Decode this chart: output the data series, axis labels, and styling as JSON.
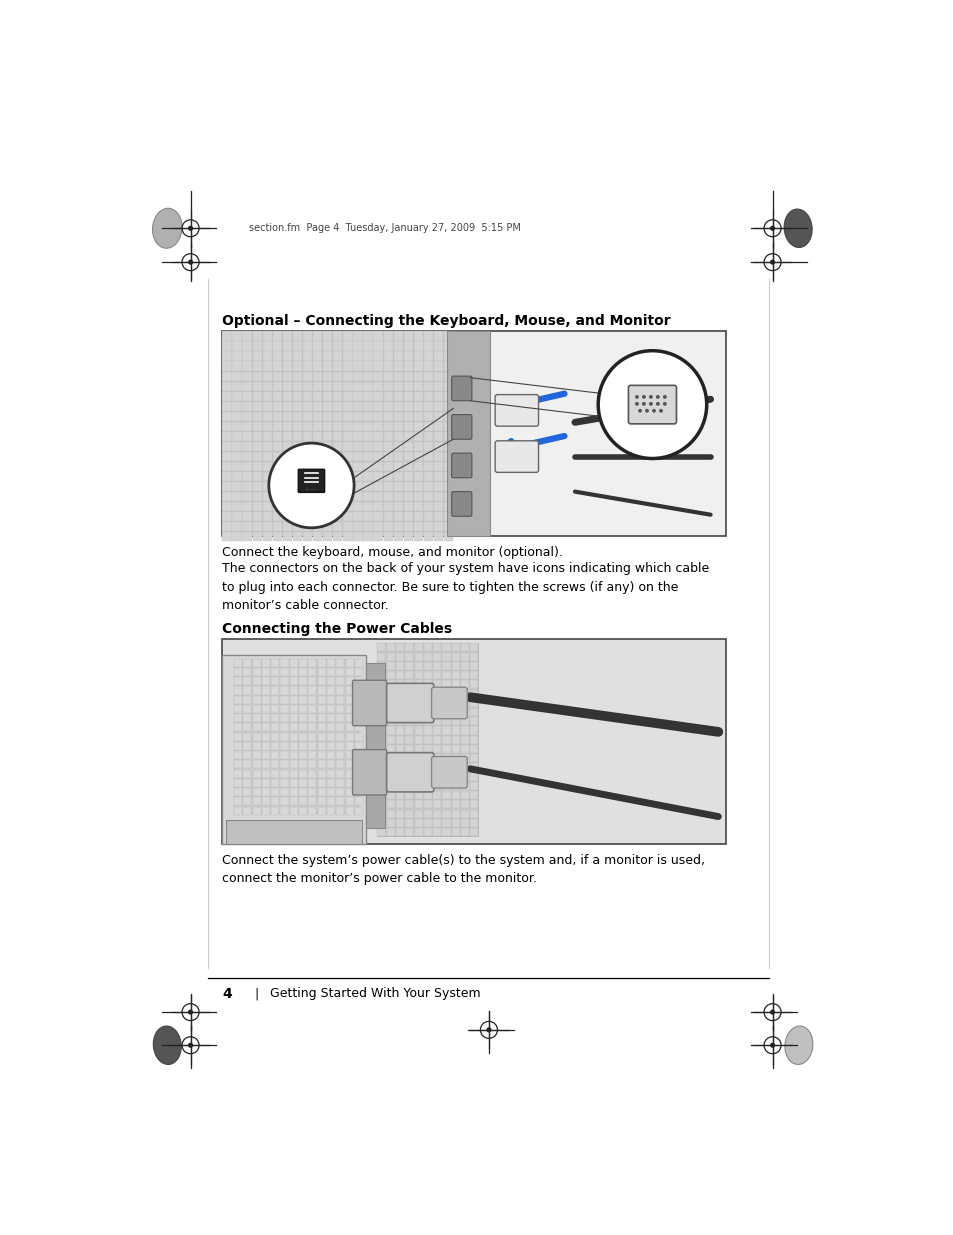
{
  "page_background": "#ffffff",
  "top_header_text": "section.fm  Page 4  Tuesday, January 27, 2009  5:15 PM",
  "section1_title": "Optional – Connecting the Keyboard, Mouse, and Monitor",
  "section1_text1": "Connect the keyboard, mouse, and monitor (optional).",
  "section1_text2": "The connectors on the back of your system have icons indicating which cable\nto plug into each connector. Be sure to tighten the screws (if any) on the\nmonitor’s cable connector.",
  "section2_title": "Connecting the Power Cables",
  "section2_text1": "Connect the system’s power cable(s) to the system and, if a monitor is used,\nconnect the monitor’s power cable to the monitor.",
  "footer_number": "4",
  "footer_text": "Getting Started With Your System",
  "body_fontsize": 9.0,
  "title_fontsize": 10.0,
  "footer_fontsize": 9.0,
  "header_fontsize": 7.0,
  "text_color": "#000000",
  "img1_bg": "#e8e8e8",
  "img2_bg": "#d8d8d8"
}
